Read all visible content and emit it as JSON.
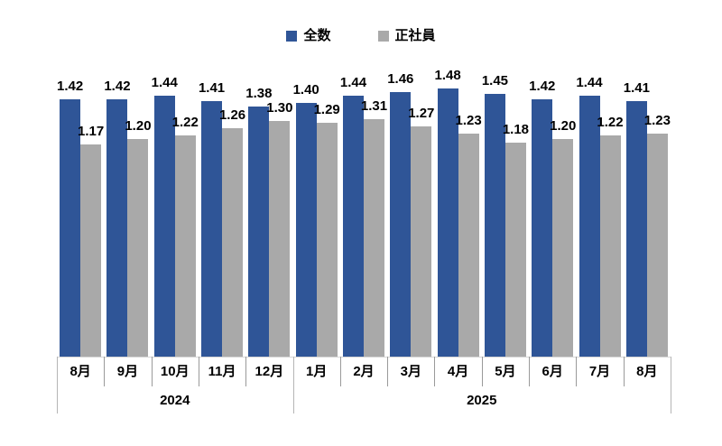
{
  "chart_data": {
    "type": "bar",
    "title": "",
    "legend_position": "top",
    "grid": false,
    "y_axis_visible": false,
    "data_labels": true,
    "label_decimals": 2,
    "ylim": [
      0,
      1.6
    ],
    "categories": [
      "8月",
      "9月",
      "10月",
      "11月",
      "12月",
      "1月",
      "2月",
      "3月",
      "4月",
      "5月",
      "6月",
      "7月",
      "8月"
    ],
    "category_groups": [
      {
        "label": "2024",
        "span": 5
      },
      {
        "label": "2025",
        "span": 8
      }
    ],
    "series": [
      {
        "name": "全数",
        "color": "#2F5597",
        "values": [
          1.42,
          1.42,
          1.44,
          1.41,
          1.38,
          1.4,
          1.44,
          1.46,
          1.48,
          1.45,
          1.42,
          1.44,
          1.41
        ]
      },
      {
        "name": "正社員",
        "color": "#A9A9A9",
        "values": [
          1.17,
          1.2,
          1.22,
          1.26,
          1.3,
          1.29,
          1.31,
          1.27,
          1.23,
          1.18,
          1.2,
          1.22,
          1.23
        ]
      }
    ]
  }
}
